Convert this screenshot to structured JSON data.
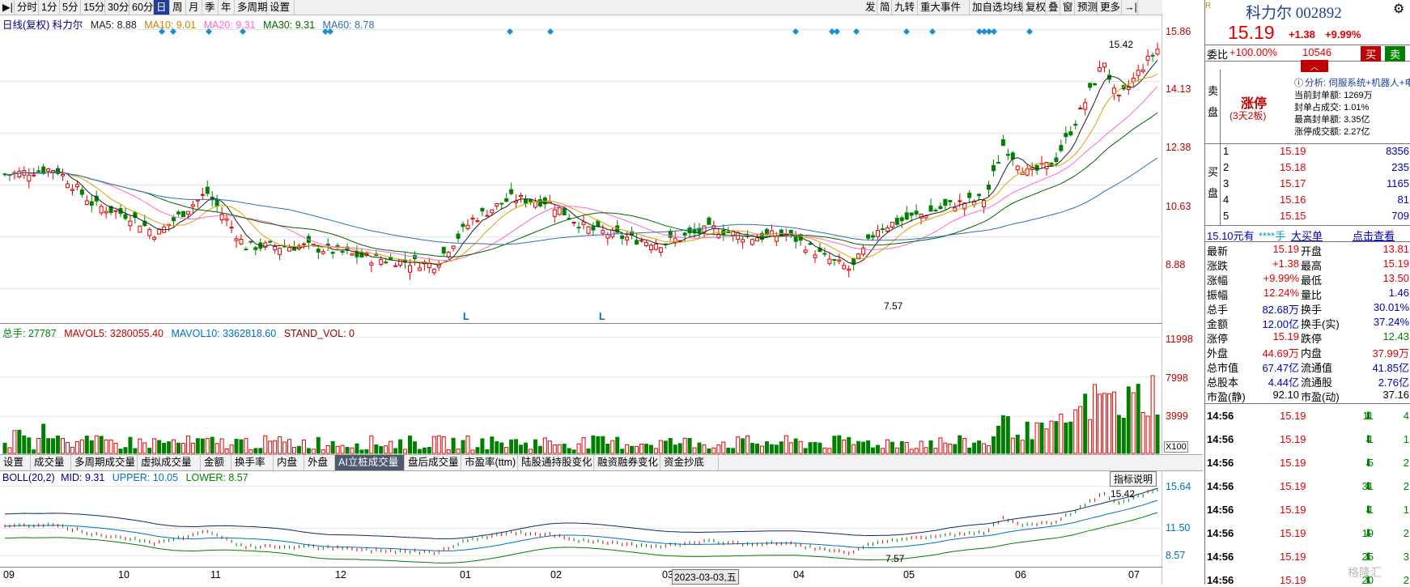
{
  "toolbar": {
    "left": [
      "分时",
      "1分",
      "5分",
      "15分",
      "30分",
      "60分",
      "日",
      "周",
      "月",
      "季",
      "年",
      "多周期",
      "设置"
    ],
    "active": "日",
    "right": [
      "发",
      "简",
      "九转",
      "重大事件",
      "加自选",
      "均线",
      "复权",
      "叠",
      "窗",
      "预测",
      "更多"
    ]
  },
  "kline": {
    "legend_title": "日线(复权) 科力尔",
    "ma5": "MA5: 8.88",
    "ma10": "MA10: 9.01",
    "ma20": "MA20: 9.31",
    "ma30": "MA30: 9.31",
    "ma60": "MA60: 8.78",
    "yticks": [
      "15.86",
      "14.13",
      "12.38",
      "10.63",
      "8.88"
    ],
    "high_label": "15.42",
    "low_label": "7.57",
    "marks": [
      "L",
      "L"
    ],
    "colors": {
      "ma5": "#2a2a2a",
      "ma10": "#e0a000",
      "ma20": "#ff66cc",
      "ma30": "#006600",
      "ma60": "#3070b0"
    }
  },
  "volume": {
    "legend": "总手: 27787",
    "mavol5": "MAVOL5: 3280055.40",
    "mavol10": "MAVOL10: 3362818.60",
    "stand": "STAND_VOL: 0",
    "yticks": [
      "11998",
      "7998",
      "3999"
    ],
    "unit": "X100"
  },
  "tabs": [
    {
      "label": "设置"
    },
    {
      "label": "成交量"
    },
    {
      "label": "多周期成交量"
    },
    {
      "label": "虚拟成交量"
    },
    {
      "label": "金额"
    },
    {
      "label": "换手率"
    },
    {
      "label": "内盘"
    },
    {
      "label": "外盘"
    },
    {
      "label": "AI立桩成交量"
    },
    {
      "label": "盘后成交量"
    },
    {
      "label": "市盈率(ttm)"
    },
    {
      "label": "陆股通持股变化"
    },
    {
      "label": "融资融券变化"
    },
    {
      "label": "资金抄底"
    }
  ],
  "active_tab": "AI立桩成交量",
  "boll": {
    "legend": "BOLL(20,2)",
    "mid": "MID: 9.31",
    "upper": "UPPER: 10.05",
    "lower": "LOWER: 8.57",
    "yticks": [
      "15.64",
      "11.50",
      "8.57"
    ],
    "high_label": "15.42",
    "low_label": "7.57",
    "help": "指标说明"
  },
  "xaxis": [
    "09",
    "10",
    "11",
    "12",
    "01",
    "02",
    "03",
    "04",
    "05",
    "06",
    "07"
  ],
  "cursor_date": "2023-03-03,五",
  "watermark": "格隆汇",
  "quote": {
    "name": "科力尔 002892",
    "price": "15.19",
    "change": "+1.38",
    "pct": "+9.99%",
    "weibi_label": "委比",
    "weibi": "+100.00%",
    "weicha": "10546",
    "buy_btn": "买",
    "sell_btn": "卖",
    "sell_side": "卖盘",
    "buy_side": "买盘",
    "status": "涨停",
    "status_sub": "(3天2板)",
    "analysis": "分析: 伺服系统+机器人+电机+",
    "info": [
      "当前封单额: 1269万",
      "封单占成交: 1.01%",
      "最高封单额: 3.35亿",
      "涨停成交额: 2.27亿"
    ],
    "bids": [
      {
        "n": "1",
        "p": "15.19",
        "v": "8356"
      },
      {
        "n": "2",
        "p": "15.18",
        "v": "235"
      },
      {
        "n": "3",
        "p": "15.17",
        "v": "1165"
      },
      {
        "n": "4",
        "p": "15.16",
        "v": "81"
      },
      {
        "n": "5",
        "p": "15.15",
        "v": "709"
      }
    ],
    "bigbuy": {
      "price": "15.10元有",
      "vol": "****手",
      "tag": "大买单",
      "link": "点击查看"
    },
    "stats": [
      [
        "最新",
        "15.19",
        "开盘",
        "13.81"
      ],
      [
        "涨跌",
        "+1.38",
        "最高",
        "15.19"
      ],
      [
        "涨幅",
        "+9.99%",
        "最低",
        "13.50"
      ],
      [
        "振幅",
        "12.24%",
        "量比",
        "1.46"
      ],
      [
        "总手",
        "82.68万",
        "换手",
        "30.01%"
      ],
      [
        "金额",
        "12.00亿",
        "换手(实)",
        "37.24%"
      ],
      [
        "涨停",
        "15.19",
        "跌停",
        "12.43"
      ],
      [
        "外盘",
        "44.69万",
        "内盘",
        "37.99万"
      ],
      [
        "总市值",
        "67.47亿",
        "流通值",
        "41.85亿"
      ],
      [
        "总股本",
        "4.44亿",
        "流通股",
        "2.76亿"
      ],
      [
        "市盈(静)",
        "92.10",
        "市盈(动)",
        "37.16"
      ]
    ],
    "ticks": [
      {
        "t": "14:56",
        "p": "15.19",
        "v": "11",
        "c": "4"
      },
      {
        "t": "14:56",
        "p": "15.19",
        "v": "1",
        "c": "1"
      },
      {
        "t": "14:56",
        "p": "15.19",
        "v": "5",
        "c": "2"
      },
      {
        "t": "14:56",
        "p": "15.19",
        "v": "31",
        "c": "2"
      },
      {
        "t": "14:56",
        "p": "15.19",
        "v": "1",
        "c": "1"
      },
      {
        "t": "14:56",
        "p": "15.19",
        "v": "19",
        "c": "2"
      },
      {
        "t": "14:56",
        "p": "15.19",
        "v": "25",
        "c": "3"
      },
      {
        "t": "14:56",
        "p": "15.19",
        "v": "20",
        "c": "2"
      }
    ]
  }
}
